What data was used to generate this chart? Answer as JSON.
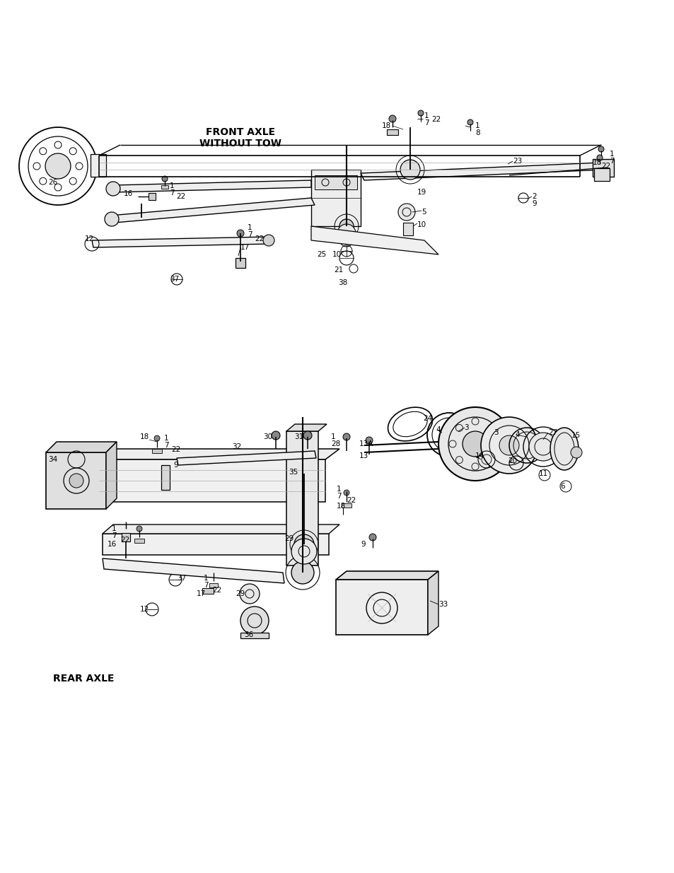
{
  "background_color": "#ffffff",
  "figsize": [
    9.54,
    12.35
  ],
  "dpi": 100,
  "front_axle_label": "FRONT AXLE\nWITHOUT TOW",
  "rear_axle_label": "REAR AXLE",
  "line_color": "#000000",
  "label_fontsize": 7.5,
  "title_fontsize": 10
}
